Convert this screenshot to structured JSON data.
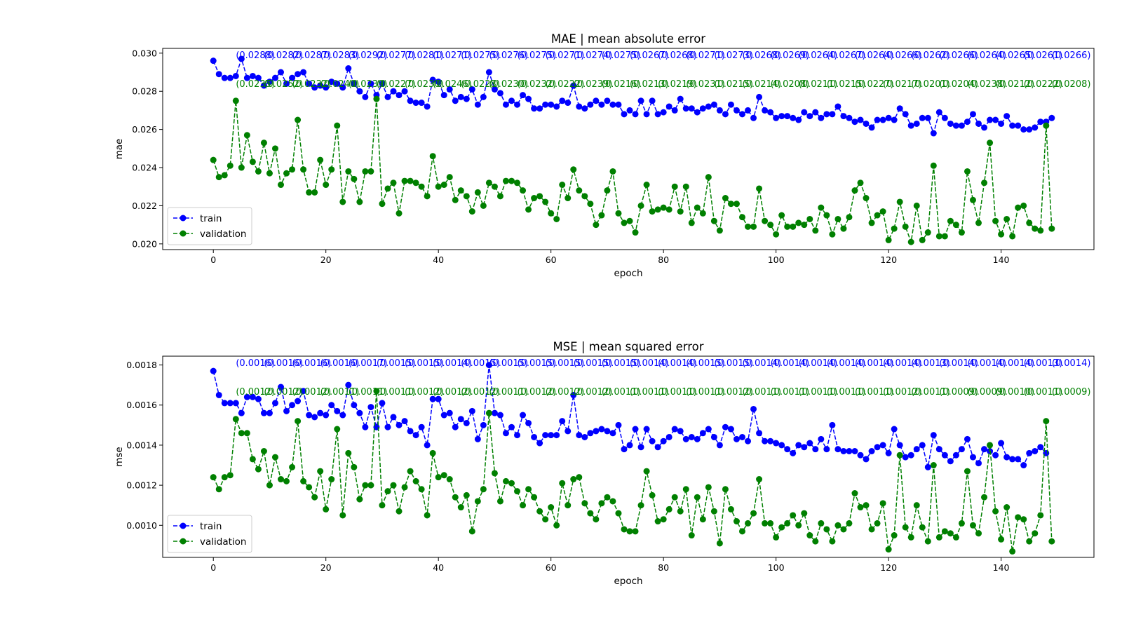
{
  "chart_data": [
    {
      "type": "line",
      "title": "MAE | mean absolute error",
      "xlabel": "epoch",
      "ylabel": "mae",
      "xlim": [
        -9,
        156.5
      ],
      "ylim": [
        0.0197,
        0.03025
      ],
      "xticks": [
        0,
        20,
        40,
        60,
        80,
        100,
        120,
        140
      ],
      "xtick_labels": [
        "0",
        "20",
        "40",
        "60",
        "80",
        "100",
        "120",
        "140"
      ],
      "yticks": [
        0.02,
        0.022,
        0.024,
        0.026,
        0.028,
        0.03
      ],
      "ytick_labels": [
        "0.020",
        "0.022",
        "0.024",
        "0.026",
        "0.028",
        "0.030"
      ],
      "legend": {
        "position": "lower-left",
        "entries": [
          "train",
          "validation"
        ]
      },
      "grid": false,
      "series": [
        {
          "name": "train",
          "color": "#0000ff",
          "linestyle": "dashed",
          "marker": "circle",
          "values": [
            0.0296,
            0.0289,
            0.0287,
            0.0287,
            0.0288,
            0.0297,
            0.0287,
            0.0288,
            0.0287,
            0.0283,
            0.0285,
            0.0287,
            0.029,
            0.0284,
            0.0287,
            0.0289,
            0.029,
            0.0284,
            0.0282,
            0.0283,
            0.0282,
            0.0285,
            0.0284,
            0.0282,
            0.0292,
            0.0284,
            0.028,
            0.0277,
            0.0284,
            0.0278,
            0.0284,
            0.0277,
            0.028,
            0.0278,
            0.028,
            0.0275,
            0.0274,
            0.0274,
            0.0272,
            0.0286,
            0.0285,
            0.0278,
            0.0281,
            0.0275,
            0.0277,
            0.0276,
            0.0281,
            0.0273,
            0.0277,
            0.029,
            0.0281,
            0.0279,
            0.0273,
            0.0275,
            0.0273,
            0.0278,
            0.0276,
            0.0271,
            0.0271,
            0.0273,
            0.0273,
            0.0272,
            0.0275,
            0.0274,
            0.0283,
            0.0272,
            0.0271,
            0.0273,
            0.0275,
            0.0273,
            0.0275,
            0.0273,
            0.0273,
            0.0268,
            0.027,
            0.0268,
            0.0275,
            0.0268,
            0.0275,
            0.0268,
            0.0269,
            0.0272,
            0.027,
            0.0276,
            0.0271,
            0.0271,
            0.0269,
            0.0271,
            0.0272,
            0.0273,
            0.027,
            0.0268,
            0.0273,
            0.027,
            0.0268,
            0.027,
            0.0266,
            0.0277,
            0.027,
            0.0269,
            0.0266,
            0.0267,
            0.0267,
            0.0266,
            0.0265,
            0.0269,
            0.0267,
            0.0269,
            0.0266,
            0.0268,
            0.0268,
            0.0272,
            0.0267,
            0.0266,
            0.0264,
            0.0265,
            0.0263,
            0.0261,
            0.0265,
            0.0265,
            0.0266,
            0.0265,
            0.0271,
            0.0268,
            0.0262,
            0.0263,
            0.0266,
            0.0266,
            0.0258,
            0.0269,
            0.0266,
            0.0263,
            0.0262,
            0.0262,
            0.0264,
            0.0268,
            0.0263,
            0.0261,
            0.0265,
            0.0265,
            0.0263,
            0.0267,
            0.0262,
            0.0262,
            0.026,
            0.026,
            0.0261,
            0.0264,
            0.0264,
            0.0266
          ],
          "annotations": [
            "(0.0288)",
            "(0.0282)",
            "(0.0287)",
            "(0.0283)",
            "(0.0292)",
            "(0.0277)",
            "(0.0281)",
            "(0.0271)",
            "(0.0275)",
            "(0.0276)",
            "(0.0275)",
            "(0.0271)",
            "(0.0274)",
            "(0.0275)",
            "(0.0267)",
            "(0.0268)",
            "(0.0271)",
            "(0.0273)",
            "(0.0268)",
            "(0.0269)",
            "(0.0264)",
            "(0.0267)",
            "(0.0264)",
            "(0.0266)",
            "(0.0262)",
            "(0.0266)",
            "(0.0264)",
            "(0.0265)",
            "(0.0261)",
            "(0.0266)"
          ]
        },
        {
          "name": "validation",
          "color": "#008000",
          "linestyle": "dashed",
          "marker": "circle",
          "values": [
            0.0244,
            0.0235,
            0.0236,
            0.0241,
            0.0275,
            0.024,
            0.0257,
            0.0243,
            0.0238,
            0.0253,
            0.0237,
            0.025,
            0.0231,
            0.0237,
            0.0239,
            0.0265,
            0.0239,
            0.0227,
            0.0227,
            0.0244,
            0.0231,
            0.0239,
            0.0262,
            0.0222,
            0.0238,
            0.0234,
            0.0222,
            0.0238,
            0.0238,
            0.0276,
            0.0221,
            0.0229,
            0.0232,
            0.0216,
            0.0233,
            0.0233,
            0.0232,
            0.023,
            0.0225,
            0.0246,
            0.023,
            0.0231,
            0.0235,
            0.0223,
            0.0228,
            0.0225,
            0.0217,
            0.0227,
            0.022,
            0.0232,
            0.023,
            0.0225,
            0.0233,
            0.0233,
            0.0232,
            0.0228,
            0.0218,
            0.0224,
            0.0225,
            0.0222,
            0.0216,
            0.0213,
            0.0231,
            0.0224,
            0.0239,
            0.0228,
            0.0225,
            0.0221,
            0.021,
            0.0215,
            0.0228,
            0.0238,
            0.0216,
            0.0211,
            0.0212,
            0.0206,
            0.022,
            0.0231,
            0.0217,
            0.0218,
            0.0219,
            0.0218,
            0.023,
            0.0217,
            0.023,
            0.0211,
            0.0219,
            0.0216,
            0.0235,
            0.0212,
            0.0207,
            0.0224,
            0.0221,
            0.0221,
            0.0214,
            0.0209,
            0.0209,
            0.0229,
            0.0212,
            0.021,
            0.0205,
            0.0215,
            0.0209,
            0.0209,
            0.0211,
            0.021,
            0.0213,
            0.0207,
            0.0219,
            0.0215,
            0.0205,
            0.0213,
            0.0208,
            0.0214,
            0.0228,
            0.0232,
            0.0224,
            0.0211,
            0.0215,
            0.0217,
            0.0202,
            0.0208,
            0.0222,
            0.0209,
            0.0201,
            0.022,
            0.0202,
            0.0206,
            0.0241,
            0.0204,
            0.0204,
            0.0212,
            0.021,
            0.0206,
            0.0238,
            0.0223,
            0.0211,
            0.0232,
            0.0253,
            0.0212,
            0.0205,
            0.0213,
            0.0204,
            0.0219,
            0.022,
            0.0211,
            0.0208,
            0.0207,
            0.0262,
            0.0208
          ],
          "annotations": [
            "(0.0235)",
            "(0.0252)",
            "(0.0232)",
            "(0.0240)",
            "(0.0239)",
            "(0.0227)",
            "(0.0230)",
            "(0.0246)",
            "(0.0228)",
            "(0.0230)",
            "(0.0232)",
            "(0.0222)",
            "(0.0239)",
            "(0.0216)",
            "(0.0213)",
            "(0.0219)",
            "(0.0231)",
            "(0.0215)",
            "(0.0214)",
            "(0.0208)",
            "(0.0211)",
            "(0.0215)",
            "(0.0227)",
            "(0.0217)",
            "(0.0201)",
            "(0.0204)",
            "(0.0238)",
            "(0.0212)",
            "(0.0222)",
            "(0.0208)"
          ]
        }
      ]
    },
    {
      "type": "line",
      "title": "MSE | mean squared error",
      "xlabel": "epoch",
      "ylabel": "mse",
      "xlim": [
        -9,
        156.5
      ],
      "ylim": [
        0.00084,
        0.001844
      ],
      "xticks": [
        0,
        20,
        40,
        60,
        80,
        100,
        120,
        140
      ],
      "xtick_labels": [
        "0",
        "20",
        "40",
        "60",
        "80",
        "100",
        "120",
        "140"
      ],
      "yticks": [
        0.001,
        0.0012,
        0.0014,
        0.0016,
        0.0018
      ],
      "ytick_labels": [
        "0.0010",
        "0.0012",
        "0.0014",
        "0.0016",
        "0.0018"
      ],
      "legend": {
        "position": "lower-left",
        "entries": [
          "train",
          "validation"
        ]
      },
      "grid": false,
      "series": [
        {
          "name": "train",
          "color": "#0000ff",
          "linestyle": "dashed",
          "marker": "circle",
          "values": [
            0.00177,
            0.00165,
            0.00161,
            0.00161,
            0.00161,
            0.00156,
            0.00164,
            0.00164,
            0.00163,
            0.00156,
            0.00156,
            0.00161,
            0.00169,
            0.00157,
            0.0016,
            0.00162,
            0.00167,
            0.00155,
            0.00154,
            0.00156,
            0.00155,
            0.0016,
            0.00157,
            0.00155,
            0.0017,
            0.0016,
            0.00156,
            0.00149,
            0.00159,
            0.00149,
            0.00161,
            0.00149,
            0.00154,
            0.0015,
            0.00152,
            0.00147,
            0.00145,
            0.00149,
            0.0014,
            0.00163,
            0.00163,
            0.00155,
            0.00156,
            0.00149,
            0.00153,
            0.00151,
            0.00157,
            0.00143,
            0.0015,
            0.0018,
            0.00156,
            0.00155,
            0.00146,
            0.00149,
            0.00145,
            0.00155,
            0.00151,
            0.00144,
            0.00141,
            0.00145,
            0.00145,
            0.00145,
            0.00152,
            0.00147,
            0.00165,
            0.00145,
            0.00144,
            0.00146,
            0.00147,
            0.00148,
            0.00147,
            0.00146,
            0.0015,
            0.00138,
            0.0014,
            0.00148,
            0.00139,
            0.00148,
            0.00142,
            0.00139,
            0.00142,
            0.00144,
            0.00148,
            0.00147,
            0.00143,
            0.00144,
            0.00143,
            0.00146,
            0.00148,
            0.00144,
            0.0014,
            0.00149,
            0.00148,
            0.00143,
            0.00144,
            0.00142,
            0.00158,
            0.00146,
            0.00142,
            0.00142,
            0.00141,
            0.0014,
            0.00138,
            0.00136,
            0.0014,
            0.00139,
            0.00141,
            0.00138,
            0.00143,
            0.00138,
            0.0015,
            0.00138,
            0.00137,
            0.00137,
            0.00137,
            0.00135,
            0.00133,
            0.00137,
            0.00139,
            0.0014,
            0.00136,
            0.00148,
            0.0014,
            0.00134,
            0.00135,
            0.00138,
            0.0014,
            0.00129,
            0.00145,
            0.00138,
            0.00135,
            0.00132,
            0.00135,
            0.00138,
            0.00143,
            0.00134,
            0.00131,
            0.00138,
            0.00137,
            0.00135,
            0.00141,
            0.00134,
            0.00133,
            0.00133,
            0.0013,
            0.00136,
            0.00137,
            0.00139,
            0.00136
          ],
          "annotations": [
            "(0.0016)",
            "(0.0016)",
            "(0.0016)",
            "(0.0016)",
            "(0.0017)",
            "(0.0015)",
            "(0.0015)",
            "(0.0014)",
            "(0.0015)",
            "(0.0015)",
            "(0.0015)",
            "(0.0015)",
            "(0.0015)",
            "(0.0015)",
            "(0.0014)",
            "(0.0014)",
            "(0.0015)",
            "(0.0015)",
            "(0.0014)",
            "(0.0014)",
            "(0.0014)",
            "(0.0014)",
            "(0.0014)",
            "(0.0014)",
            "(0.0013)",
            "(0.0014)",
            "(0.0014)",
            "(0.0014)",
            "(0.0013)",
            "(0.0014)"
          ]
        },
        {
          "name": "validation",
          "color": "#008000",
          "linestyle": "dashed",
          "marker": "circle",
          "values": [
            0.00124,
            0.00118,
            0.00124,
            0.00125,
            0.00153,
            0.00146,
            0.00146,
            0.00133,
            0.00128,
            0.00137,
            0.0012,
            0.00134,
            0.00123,
            0.00122,
            0.00129,
            0.00152,
            0.00122,
            0.00119,
            0.00114,
            0.00127,
            0.00108,
            0.00123,
            0.00148,
            0.00105,
            0.00136,
            0.00129,
            0.00113,
            0.0012,
            0.0012,
            0.00167,
            0.0011,
            0.00117,
            0.0012,
            0.00107,
            0.00119,
            0.00127,
            0.00122,
            0.00118,
            0.00105,
            0.00136,
            0.00124,
            0.00125,
            0.00123,
            0.00114,
            0.00109,
            0.00115,
            0.00097,
            0.00112,
            0.00118,
            0.00156,
            0.00126,
            0.00112,
            0.00122,
            0.00121,
            0.00117,
            0.0011,
            0.00118,
            0.00114,
            0.00107,
            0.00103,
            0.00109,
            0.001,
            0.00121,
            0.0011,
            0.00123,
            0.00124,
            0.00111,
            0.00106,
            0.00103,
            0.00111,
            0.00114,
            0.00112,
            0.00106,
            0.00098,
            0.00097,
            0.00097,
            0.0011,
            0.00127,
            0.00115,
            0.00102,
            0.00103,
            0.00108,
            0.00114,
            0.00107,
            0.00118,
            0.00095,
            0.00114,
            0.00103,
            0.00119,
            0.00107,
            0.00091,
            0.00118,
            0.00108,
            0.00102,
            0.00097,
            0.00101,
            0.00106,
            0.00123,
            0.00101,
            0.00101,
            0.00094,
            0.00099,
            0.00101,
            0.00105,
            0.001,
            0.00106,
            0.00095,
            0.00092,
            0.00101,
            0.00098,
            0.00092,
            0.001,
            0.00098,
            0.00101,
            0.00116,
            0.00109,
            0.0011,
            0.00098,
            0.00101,
            0.00111,
            0.00088,
            0.00095,
            0.00135,
            0.00099,
            0.00094,
            0.0011,
            0.00099,
            0.00092,
            0.0013,
            0.00094,
            0.00097,
            0.00096,
            0.00094,
            0.00101,
            0.00127,
            0.001,
            0.00096,
            0.00114,
            0.0014,
            0.00107,
            0.00093,
            0.00109,
            0.00087,
            0.00104,
            0.00103,
            0.00092,
            0.00096,
            0.00105,
            0.00152,
            0.00092
          ],
          "annotations": [
            "(0.0012)",
            "(0.0012)",
            "(0.0012)",
            "(0.0011)",
            "(0.0011)",
            "(0.0011)",
            "(0.0012)",
            "(0.0012)",
            "(0.0012)",
            "(0.0011)",
            "(0.0012)",
            "(0.0012)",
            "(0.0012)",
            "(0.0011)",
            "(0.0011)",
            "(0.0011)",
            "(0.0011)",
            "(0.0012)",
            "(0.0011)",
            "(0.0011)",
            "(0.0011)",
            "(0.0011)",
            "(0.0011)",
            "(0.0012)",
            "(0.0011)",
            "(0.0009)",
            "(0.0009)",
            "(0.0010)",
            "(0.0011)",
            "(0.0009)"
          ]
        }
      ]
    }
  ]
}
